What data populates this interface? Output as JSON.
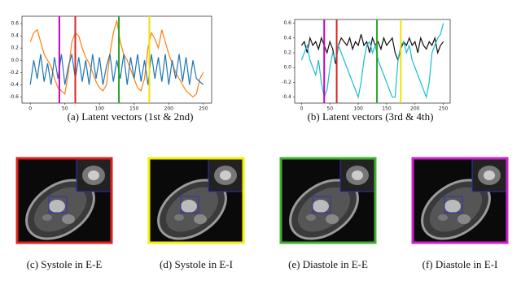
{
  "chart_data": [
    {
      "type": "line",
      "caption": "(a) Latent vectors (1st & 2nd)",
      "x": [
        0,
        5,
        10,
        15,
        20,
        25,
        30,
        35,
        40,
        45,
        50,
        55,
        60,
        65,
        70,
        75,
        80,
        85,
        90,
        95,
        100,
        105,
        110,
        115,
        120,
        125,
        130,
        135,
        140,
        145,
        150,
        155,
        160,
        165,
        170,
        175,
        180,
        185,
        190,
        195,
        200,
        205,
        210,
        215,
        220,
        225,
        230,
        235,
        240,
        245,
        250
      ],
      "series": [
        {
          "color": "#ff7f0e",
          "values": [
            0.3,
            0.45,
            0.5,
            0.3,
            0.1,
            0.0,
            -0.1,
            -0.3,
            -0.45,
            -0.5,
            -0.55,
            -0.2,
            0.3,
            0.45,
            0.4,
            0.2,
            0.05,
            -0.05,
            -0.2,
            -0.35,
            -0.45,
            -0.5,
            -0.4,
            0.1,
            0.45,
            0.65,
            0.3,
            0.1,
            0.0,
            -0.15,
            -0.3,
            -0.45,
            -0.5,
            -0.3,
            0.2,
            0.45,
            0.35,
            0.2,
            0.5,
            0.3,
            0.1,
            -0.05,
            -0.2,
            -0.3,
            -0.4,
            -0.5,
            -0.55,
            -0.6,
            -0.55,
            -0.3,
            -0.2
          ]
        },
        {
          "color": "#1f77b4",
          "values": [
            -0.4,
            0.0,
            -0.3,
            0.1,
            -0.35,
            -0.05,
            -0.4,
            0.05,
            -0.3,
            0.1,
            -0.4,
            -0.1,
            0.1,
            -0.3,
            0.05,
            -0.35,
            0.0,
            -0.4,
            0.1,
            -0.3,
            0.05,
            -0.4,
            -0.1,
            0.1,
            -0.35,
            0.0,
            -0.3,
            0.1,
            -0.4,
            0.05,
            -0.3,
            0.1,
            -0.35,
            0.0,
            -0.4,
            0.1,
            -0.3,
            0.05,
            -0.35,
            0.1,
            -0.4,
            0.0,
            -0.3,
            0.1,
            -0.35,
            0.05,
            -0.4,
            0.0,
            -0.3,
            -0.35,
            -0.4
          ]
        }
      ],
      "markers": [
        {
          "x": 42,
          "color": "#c000c0"
        },
        {
          "x": 65,
          "color": "#d62728"
        },
        {
          "x": 128,
          "color": "#2ca02c"
        },
        {
          "x": 172,
          "color": "#f0e000"
        }
      ],
      "xlim": [
        -12,
        262
      ],
      "xticks": [
        0,
        50,
        100,
        150,
        200,
        250
      ],
      "ylim": [
        -0.7,
        0.72
      ],
      "yticks": [
        -0.6,
        -0.4,
        -0.2,
        {
          "value": 0,
          "label": "0.0"
        },
        0.2,
        0.4,
        0.6
      ]
    },
    {
      "type": "line",
      "caption": "(b) Latent vectors (3rd & 4th)",
      "x": [
        0,
        5,
        10,
        15,
        20,
        25,
        30,
        35,
        40,
        45,
        50,
        55,
        60,
        65,
        70,
        75,
        80,
        85,
        90,
        95,
        100,
        105,
        110,
        115,
        120,
        125,
        130,
        135,
        140,
        145,
        150,
        155,
        160,
        165,
        170,
        175,
        180,
        185,
        190,
        195,
        200,
        205,
        210,
        215,
        220,
        225,
        230,
        235,
        240,
        245,
        250
      ],
      "series": [
        {
          "color": "#111111",
          "values": [
            0.3,
            0.35,
            0.2,
            0.4,
            0.3,
            0.35,
            0.25,
            0.4,
            0.3,
            0.2,
            0.35,
            0.25,
            0.05,
            0.3,
            0.4,
            0.35,
            0.3,
            0.4,
            0.25,
            0.35,
            0.3,
            0.45,
            0.3,
            0.35,
            0.2,
            0.4,
            0.3,
            0.35,
            0.25,
            0.4,
            0.3,
            0.35,
            0.4,
            0.2,
            0.1,
            0.25,
            0.35,
            0.3,
            0.4,
            0.3,
            0.35,
            0.2,
            0.4,
            0.3,
            0.25,
            0.35,
            0.3,
            0.4,
            0.2,
            0.3,
            0.35
          ]
        },
        {
          "color": "#17becf",
          "values": [
            0.1,
            0.2,
            0.3,
            0.1,
            0.0,
            -0.1,
            0.1,
            -0.2,
            -0.4,
            -0.3,
            0.0,
            0.2,
            0.1,
            0.3,
            0.2,
            0.1,
            0.0,
            -0.1,
            -0.2,
            -0.3,
            -0.4,
            -0.2,
            0.1,
            0.3,
            0.35,
            0.2,
            0.3,
            0.1,
            0.0,
            -0.1,
            -0.2,
            -0.3,
            -0.4,
            -0.4,
            0.1,
            0.3,
            0.35,
            0.2,
            0.3,
            0.1,
            0.0,
            -0.1,
            -0.2,
            -0.3,
            -0.4,
            -0.2,
            0.2,
            0.3,
            0.4,
            0.45,
            0.6
          ]
        }
      ],
      "markers": [
        {
          "x": 40,
          "color": "#c000c0"
        },
        {
          "x": 62,
          "color": "#d62728"
        },
        {
          "x": 133,
          "color": "#2ca02c"
        },
        {
          "x": 175,
          "color": "#f0e000"
        }
      ],
      "xlim": [
        -12,
        262
      ],
      "xticks": [
        0,
        50,
        100,
        150,
        200,
        250
      ],
      "ylim": [
        -0.48,
        0.65
      ],
      "yticks": [
        -0.4,
        -0.2,
        {
          "value": 0,
          "label": "0.0"
        },
        0.2,
        0.4,
        0.6
      ]
    }
  ],
  "panels": [
    {
      "caption": "(c) Systole in E-E",
      "frame_color": "#e02020"
    },
    {
      "caption": "(d) Systole in E-I",
      "frame_color": "#f0f000"
    },
    {
      "caption": "(e) Diastole in E-E",
      "frame_color": "#40b030"
    },
    {
      "caption": "(f) Diastole in E-I",
      "frame_color": "#d020d0"
    }
  ]
}
